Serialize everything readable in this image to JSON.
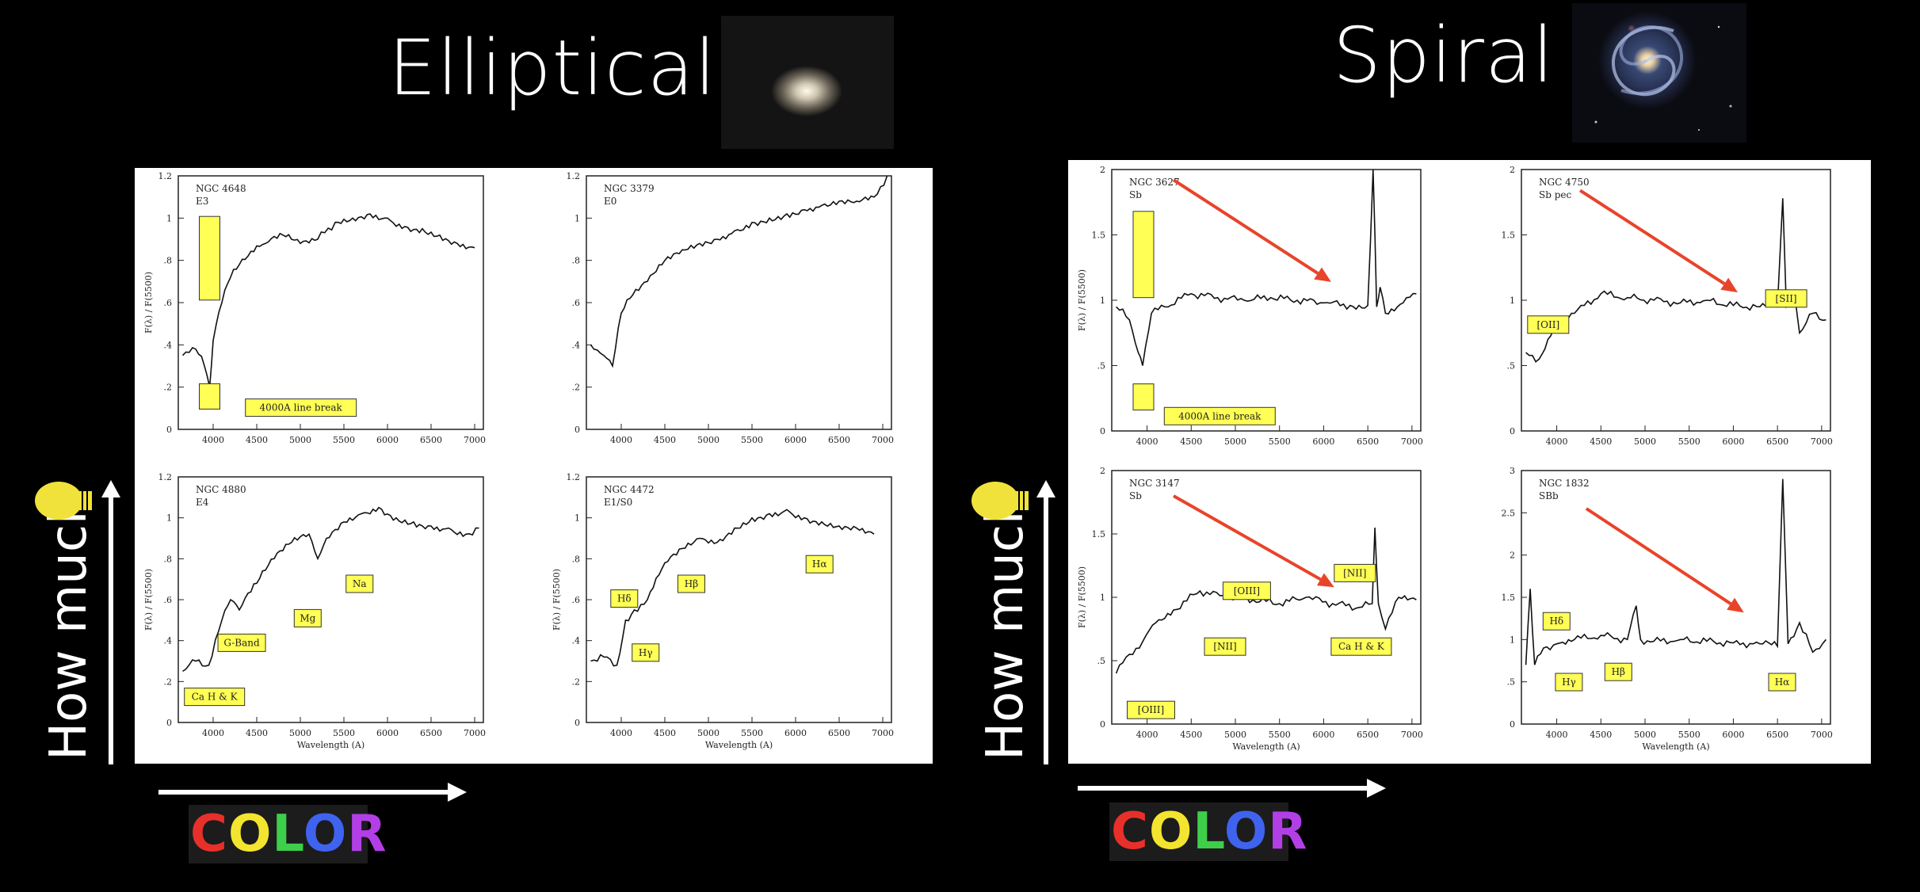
{
  "colors": {
    "background": "#000000",
    "label_fill": "#ffff55",
    "arrow_red": "#e8442a",
    "bulb": "#f0e23a",
    "color_letters": [
      "#e8302a",
      "#f3e52f",
      "#3ecf4a",
      "#3f63ee",
      "#b23fe6"
    ]
  },
  "left": {
    "title": "Elliptical",
    "thumbnail_icon": "elliptical-galaxy-photo",
    "ylabel_big": "How much",
    "color_letters": [
      "C",
      "O",
      "L",
      "O",
      "R"
    ]
  },
  "right": {
    "title": "Spiral",
    "thumbnail_icon": "spiral-galaxy-photo",
    "ylabel_big": "How much",
    "color_letters": [
      "C",
      "O",
      "L",
      "O",
      "R"
    ]
  },
  "chart_data": [
    {
      "type": "line",
      "name": "NGC 4648",
      "title": "NGC 4648",
      "subtitle": "E3",
      "ylabel": "F(λ) / F(5500)",
      "xlabel": "",
      "xlim": [
        3600,
        7100
      ],
      "ylim": [
        0,
        1.2
      ],
      "xticks": [
        "4000",
        "4500",
        "5000",
        "5500",
        "6000",
        "6500",
        "7000"
      ],
      "yticks": [
        "0",
        ".2",
        ".4",
        ".6",
        ".8",
        "1",
        "1.2"
      ],
      "x": [
        3650,
        3800,
        3900,
        3960,
        4000,
        4100,
        4200,
        4400,
        4600,
        4800,
        5000,
        5200,
        5400,
        5600,
        5800,
        6000,
        6200,
        6400,
        6600,
        6800,
        7000
      ],
      "y": [
        0.35,
        0.38,
        0.3,
        0.2,
        0.42,
        0.6,
        0.72,
        0.82,
        0.88,
        0.92,
        0.88,
        0.9,
        0.98,
        1.0,
        1.02,
        1.0,
        0.96,
        0.95,
        0.92,
        0.88,
        0.86
      ],
      "annotations": [
        "4000A line break"
      ],
      "highlight_box_at": 3950
    },
    {
      "type": "line",
      "name": "NGC 3379",
      "title": "NGC 3379",
      "subtitle": "E0",
      "ylabel": "",
      "xlabel": "",
      "xlim": [
        3600,
        7100
      ],
      "ylim": [
        0,
        1.2
      ],
      "xticks": [
        "4000",
        "4500",
        "5000",
        "5500",
        "6000",
        "6500",
        "7000"
      ],
      "yticks": [
        "0",
        ".2",
        ".4",
        ".6",
        ".8",
        "1",
        "1.2"
      ],
      "x": [
        3650,
        3800,
        3900,
        4000,
        4100,
        4300,
        4500,
        4700,
        4900,
        5100,
        5300,
        5500,
        5700,
        5900,
        6100,
        6300,
        6500,
        6700,
        6900,
        7050
      ],
      "y": [
        0.4,
        0.35,
        0.3,
        0.55,
        0.62,
        0.7,
        0.8,
        0.85,
        0.88,
        0.9,
        0.94,
        0.98,
        1.0,
        1.02,
        1.04,
        1.06,
        1.08,
        1.08,
        1.1,
        1.2
      ],
      "annotations": []
    },
    {
      "type": "line",
      "name": "NGC 4880",
      "title": "NGC 4880",
      "subtitle": "E4",
      "ylabel": "F(λ) / F(5500)",
      "xlabel": "Wavelength (A)",
      "xlim": [
        3600,
        7100
      ],
      "ylim": [
        0,
        1.2
      ],
      "xticks": [
        "4000",
        "4500",
        "5000",
        "5500",
        "6000",
        "6500",
        "7000"
      ],
      "yticks": [
        "0",
        ".2",
        ".4",
        ".6",
        ".8",
        "1",
        "1.2"
      ],
      "x": [
        3650,
        3800,
        3950,
        4100,
        4200,
        4300,
        4500,
        4700,
        4900,
        5100,
        5200,
        5300,
        5500,
        5700,
        5900,
        6100,
        6300,
        6500,
        6700,
        6900,
        7050
      ],
      "y": [
        0.25,
        0.3,
        0.28,
        0.5,
        0.6,
        0.55,
        0.68,
        0.8,
        0.88,
        0.92,
        0.8,
        0.9,
        0.98,
        1.02,
        1.05,
        1.0,
        0.98,
        0.96,
        0.95,
        0.92,
        0.95
      ],
      "annotations": [
        "Ca H & K",
        "G-Band",
        "Mg",
        "Na"
      ]
    },
    {
      "type": "line",
      "name": "NGC 4472",
      "title": "NGC 4472",
      "subtitle": "E1/S0",
      "ylabel": "F(λ) / F(5500)",
      "xlabel": "Wavelength (A)",
      "xlim": [
        3600,
        7100
      ],
      "ylim": [
        0,
        1.2
      ],
      "xticks": [
        "4000",
        "4500",
        "5000",
        "5500",
        "6000",
        "6500",
        "7000"
      ],
      "yticks": [
        "0",
        ".2",
        ".4",
        ".6",
        ".8",
        "1",
        "1.2"
      ],
      "x": [
        3650,
        3800,
        3950,
        4050,
        4150,
        4300,
        4500,
        4700,
        4900,
        5100,
        5300,
        5500,
        5700,
        5900,
        6100,
        6300,
        6500,
        6700,
        6900
      ],
      "y": [
        0.3,
        0.32,
        0.28,
        0.5,
        0.55,
        0.6,
        0.78,
        0.85,
        0.9,
        0.88,
        0.95,
        1.0,
        1.02,
        1.04,
        1.0,
        0.98,
        0.96,
        0.95,
        0.92
      ],
      "annotations": [
        "Hδ",
        "Hγ",
        "Hβ",
        "Hα"
      ]
    },
    {
      "type": "line",
      "name": "NGC 3627",
      "title": "NGC 3627",
      "subtitle": "Sb",
      "ylabel": "F(λ) / F(5500)",
      "xlabel": "",
      "xlim": [
        3600,
        7100
      ],
      "ylim": [
        0,
        2
      ],
      "xticks": [
        "4000",
        "4500",
        "5000",
        "5500",
        "6000",
        "6500",
        "7000"
      ],
      "yticks": [
        "0",
        ".5",
        "1",
        "1.5",
        "2"
      ],
      "x": [
        3650,
        3800,
        3900,
        3950,
        4050,
        4200,
        4500,
        4800,
        5100,
        5400,
        5700,
        6000,
        6300,
        6500,
        6560,
        6600,
        6640,
        6700,
        6900,
        7050
      ],
      "y": [
        0.95,
        0.85,
        0.6,
        0.5,
        0.9,
        0.95,
        1.05,
        1.02,
        1.0,
        1.02,
        1.0,
        0.98,
        0.96,
        0.96,
        2.0,
        0.95,
        1.1,
        0.9,
        0.98,
        1.05
      ],
      "annotations": [
        "4000A line break"
      ],
      "highlight_box_at": 3950
    },
    {
      "type": "line",
      "name": "NGC 4750",
      "title": "NGC 4750",
      "subtitle": "Sb pec",
      "ylabel": "",
      "xlabel": "",
      "xlim": [
        3600,
        7100
      ],
      "ylim": [
        0,
        2
      ],
      "xticks": [
        "4000",
        "4500",
        "5000",
        "5500",
        "6000",
        "6500",
        "7000"
      ],
      "yticks": [
        "0",
        ".5",
        "1",
        "1.5",
        "2"
      ],
      "x": [
        3650,
        3800,
        3900,
        4000,
        4200,
        4500,
        4800,
        5100,
        5400,
        5700,
        6000,
        6300,
        6500,
        6560,
        6600,
        6700,
        6750,
        6900,
        7050
      ],
      "y": [
        0.6,
        0.55,
        0.7,
        0.85,
        0.9,
        1.05,
        1.02,
        1.0,
        0.98,
        1.0,
        0.96,
        0.95,
        0.95,
        1.78,
        0.95,
        1.02,
        0.75,
        0.9,
        0.85
      ],
      "annotations": [
        "[OII]",
        "[SII]"
      ]
    },
    {
      "type": "line",
      "name": "NGC 3147",
      "title": "NGC 3147",
      "subtitle": "Sb",
      "ylabel": "F(λ) / F(5500)",
      "xlabel": "Wavelength (A)",
      "xlim": [
        3600,
        7100
      ],
      "ylim": [
        0,
        2
      ],
      "xticks": [
        "4000",
        "4500",
        "5000",
        "5500",
        "6000",
        "6500",
        "7000"
      ],
      "yticks": [
        "0",
        ".5",
        "1",
        "1.5",
        "2"
      ],
      "x": [
        3650,
        3800,
        3950,
        4100,
        4300,
        4600,
        4900,
        5200,
        5500,
        5800,
        6100,
        6400,
        6550,
        6580,
        6620,
        6700,
        6850,
        7050
      ],
      "y": [
        0.4,
        0.55,
        0.65,
        0.8,
        0.9,
        1.05,
        1.0,
        0.98,
        0.95,
        1.0,
        0.95,
        0.92,
        0.95,
        1.55,
        0.95,
        0.75,
        1.0,
        0.98
      ],
      "annotations": [
        "[OIII]",
        "[OIII]",
        "[NII]",
        "[NII]",
        "Ca H & K"
      ]
    },
    {
      "type": "line",
      "name": "NGC 1832",
      "title": "NGC 1832",
      "subtitle": "SBb",
      "ylabel": "",
      "xlabel": "Wavelength (A)",
      "xlim": [
        3600,
        7100
      ],
      "ylim": [
        0,
        3
      ],
      "xticks": [
        "4000",
        "4500",
        "5000",
        "5500",
        "6000",
        "6500",
        "7000"
      ],
      "yticks": [
        "0",
        ".5",
        "1",
        "1.5",
        "2",
        "2.5",
        "3"
      ],
      "x": [
        3650,
        3700,
        3750,
        3850,
        4000,
        4200,
        4500,
        4800,
        4900,
        4950,
        5100,
        5400,
        5700,
        6000,
        6300,
        6500,
        6560,
        6620,
        6750,
        6900,
        7050
      ],
      "y": [
        0.7,
        1.6,
        0.7,
        0.9,
        0.95,
        1.0,
        1.05,
        1.0,
        1.4,
        1.0,
        0.98,
        1.0,
        0.98,
        0.96,
        0.95,
        0.92,
        2.9,
        0.95,
        1.2,
        0.85,
        1.0
      ],
      "annotations": [
        "Hδ",
        "Hγ",
        "Hβ",
        "Hα"
      ]
    }
  ]
}
